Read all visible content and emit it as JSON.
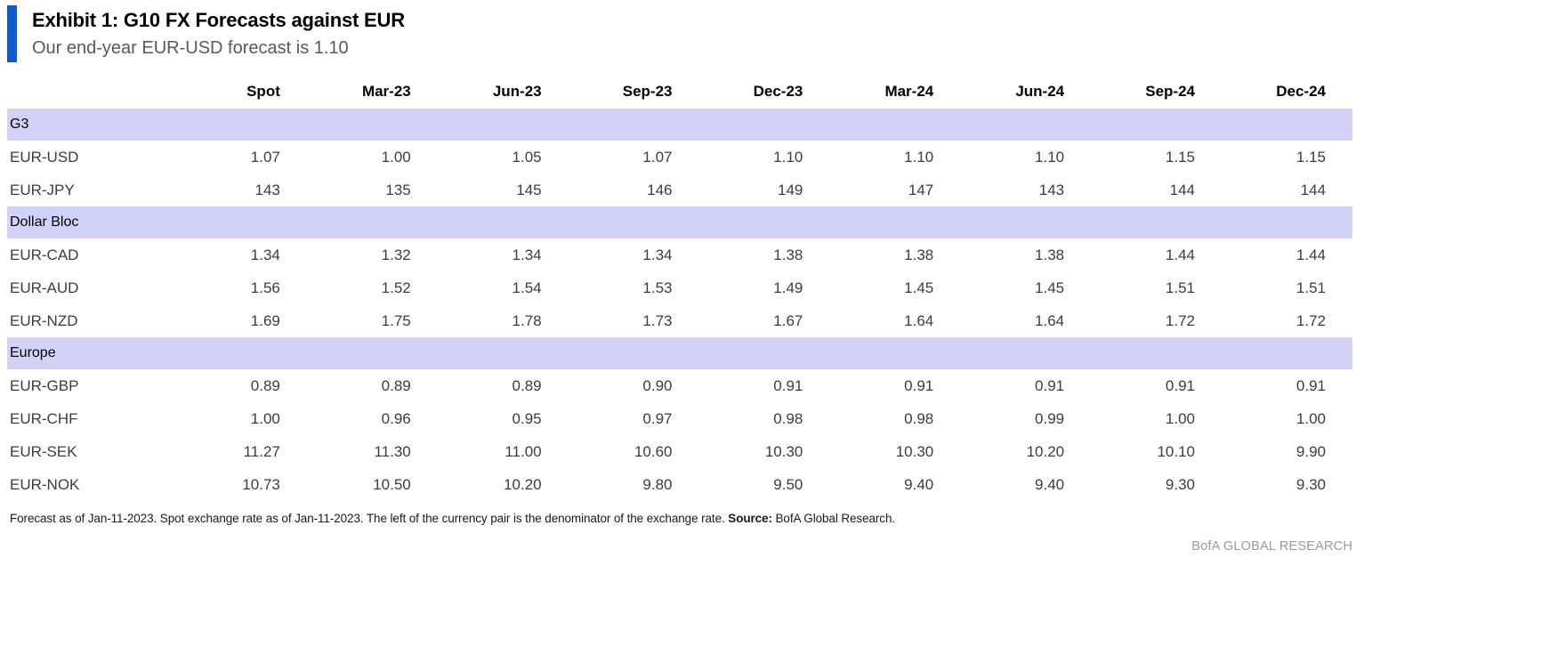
{
  "header": {
    "title": "Exhibit 1: G10 FX Forecasts against EUR",
    "subtitle": "Our end-year EUR-USD forecast is 1.10"
  },
  "chart_data": {
    "type": "table",
    "title": "Exhibit 1: G10 FX Forecasts against EUR",
    "subtitle": "Our end-year EUR-USD forecast is 1.10",
    "row_header_label": "",
    "columns": [
      "Spot",
      "Mar-23",
      "Jun-23",
      "Sep-23",
      "Dec-23",
      "Mar-24",
      "Jun-24",
      "Sep-24",
      "Dec-24"
    ],
    "sections": [
      {
        "label": "G3",
        "rows": [
          {
            "pair": "EUR-USD",
            "values": [
              "1.07",
              "1.00",
              "1.05",
              "1.07",
              "1.10",
              "1.10",
              "1.10",
              "1.15",
              "1.15"
            ]
          },
          {
            "pair": "EUR-JPY",
            "values": [
              "143",
              "135",
              "145",
              "146",
              "149",
              "147",
              "143",
              "144",
              "144"
            ]
          }
        ]
      },
      {
        "label": "Dollar Bloc",
        "rows": [
          {
            "pair": "EUR-CAD",
            "values": [
              "1.34",
              "1.32",
              "1.34",
              "1.34",
              "1.38",
              "1.38",
              "1.38",
              "1.44",
              "1.44"
            ]
          },
          {
            "pair": "EUR-AUD",
            "values": [
              "1.56",
              "1.52",
              "1.54",
              "1.53",
              "1.49",
              "1.45",
              "1.45",
              "1.51",
              "1.51"
            ]
          },
          {
            "pair": "EUR-NZD",
            "values": [
              "1.69",
              "1.75",
              "1.78",
              "1.73",
              "1.67",
              "1.64",
              "1.64",
              "1.72",
              "1.72"
            ]
          }
        ]
      },
      {
        "label": "Europe",
        "rows": [
          {
            "pair": "EUR-GBP",
            "values": [
              "0.89",
              "0.89",
              "0.89",
              "0.90",
              "0.91",
              "0.91",
              "0.91",
              "0.91",
              "0.91"
            ]
          },
          {
            "pair": "EUR-CHF",
            "values": [
              "1.00",
              "0.96",
              "0.95",
              "0.97",
              "0.98",
              "0.98",
              "0.99",
              "1.00",
              "1.00"
            ]
          },
          {
            "pair": "EUR-SEK",
            "values": [
              "11.27",
              "11.30",
              "11.00",
              "10.60",
              "10.30",
              "10.30",
              "10.20",
              "10.10",
              "9.90"
            ]
          },
          {
            "pair": "EUR-NOK",
            "values": [
              "10.73",
              "10.50",
              "10.20",
              "9.80",
              "9.50",
              "9.40",
              "9.40",
              "9.30",
              "9.30"
            ]
          }
        ]
      }
    ]
  },
  "footnote": {
    "text": "Forecast as of Jan-11-2023. Spot exchange rate as of Jan-11-2023. The left of the currency pair is the denominator of the exchange rate. ",
    "source_label": "Source:",
    "source_value": " BofA Global Research."
  },
  "branding": {
    "label": "BofA GLOBAL RESEARCH"
  },
  "colors": {
    "accent_blue": "#1259c9",
    "section_band": "#d2d2f8",
    "subtitle_gray": "#595959",
    "body_text": "#3c3c3c",
    "brand_gray": "#9a9a9a"
  }
}
